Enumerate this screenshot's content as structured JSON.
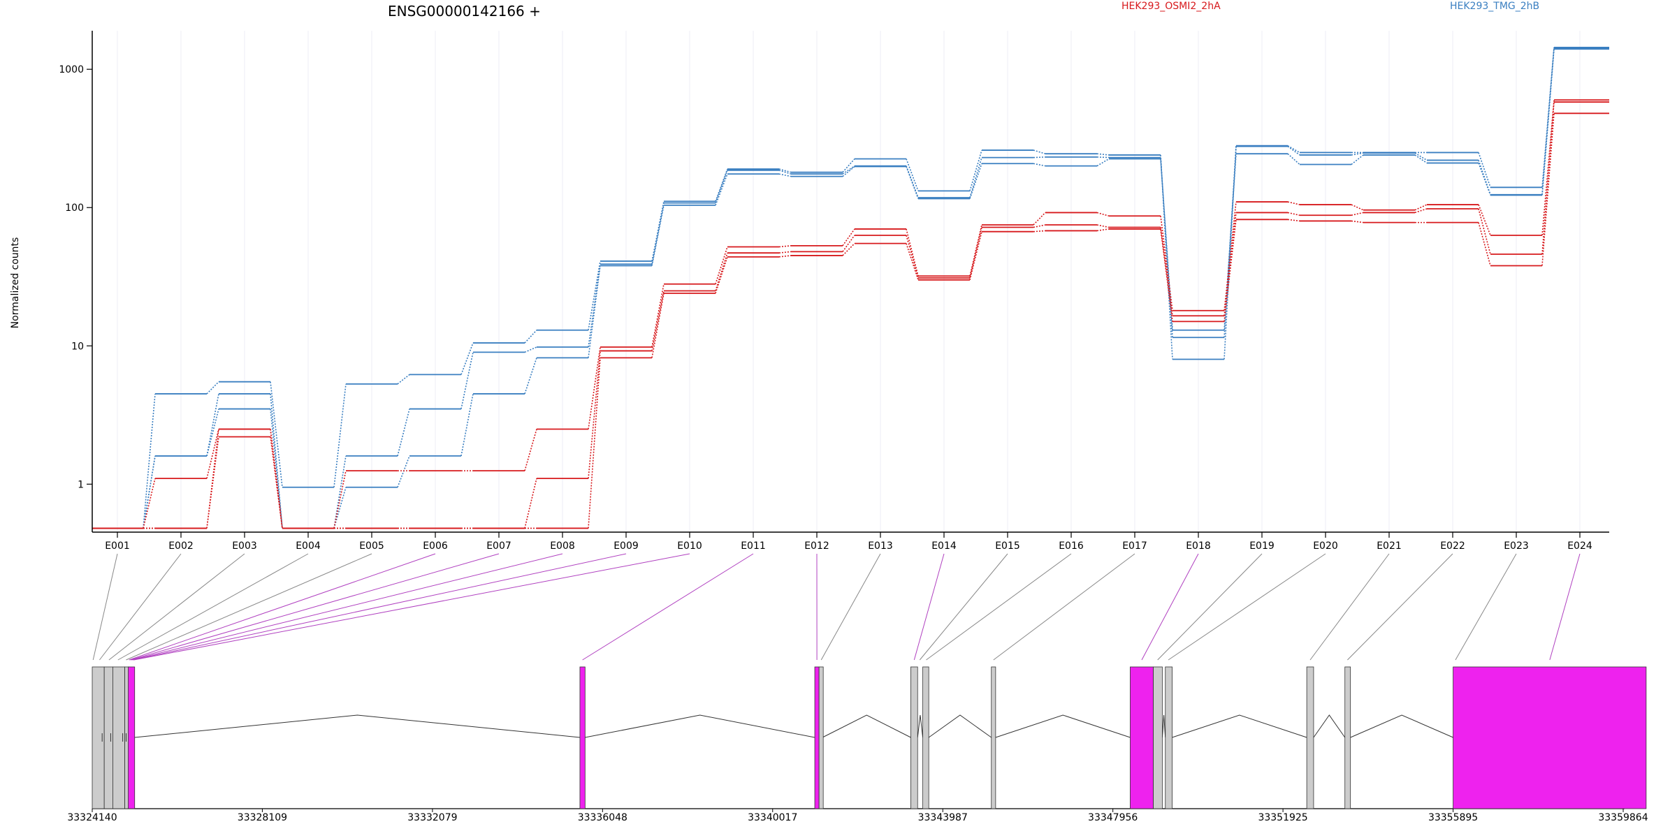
{
  "chart_data": {
    "type": "line",
    "title": "ENSG00000142166 +",
    "ylabel": "Normalized counts",
    "xlabel": "",
    "yscale": "log",
    "ylim": [
      0.45,
      1900
    ],
    "y_ticks": [
      1,
      10,
      100,
      1000
    ],
    "grid": "vertical",
    "legend_placement": "top",
    "exons": [
      "E001",
      "E002",
      "E003",
      "E004",
      "E005",
      "E006",
      "E007",
      "E008",
      "E009",
      "E010",
      "E011",
      "E012",
      "E013",
      "E014",
      "E015",
      "E016",
      "E017",
      "E018",
      "E019",
      "E020",
      "E021",
      "E022",
      "E023",
      "E024"
    ],
    "series": [
      {
        "name": "HEK293_TMG_2hB",
        "color": "#3a7fc1",
        "values": [
          0.48,
          4.5,
          5.5,
          0.95,
          5.3,
          6.2,
          10.5,
          13,
          41,
          111,
          190,
          180,
          225,
          132,
          260,
          245,
          240,
          8,
          280,
          250,
          250,
          250,
          140,
          1440
        ]
      },
      {
        "name": "HEK293_TMG_2hB",
        "color": "#3a7fc1",
        "values": [
          0.48,
          1.6,
          4.5,
          0.48,
          1.6,
          3.5,
          9,
          9.8,
          39,
          108,
          186,
          175,
          200,
          118,
          230,
          232,
          230,
          11.5,
          277,
          240,
          248,
          220,
          124,
          1420
        ]
      },
      {
        "name": "HEK293_TMG_2hB",
        "color": "#3a7fc1",
        "values": [
          0.48,
          1.6,
          3.5,
          0.48,
          0.95,
          1.6,
          4.5,
          8.2,
          38,
          104,
          175,
          168,
          198,
          116,
          208,
          200,
          225,
          13,
          245,
          205,
          240,
          210,
          123,
          1400
        ]
      },
      {
        "name": "HEK293_OSMI2_2hA",
        "color": "#d7191c",
        "values": [
          0.48,
          1.1,
          2.5,
          0.48,
          1.25,
          1.25,
          1.25,
          2.5,
          9.8,
          28,
          52,
          53,
          70,
          32,
          75,
          92,
          87,
          18,
          110,
          105,
          96,
          105,
          63,
          600
        ]
      },
      {
        "name": "HEK293_OSMI2_2hA",
        "color": "#d7191c",
        "values": [
          0.48,
          0.48,
          2.5,
          0.48,
          0.48,
          0.48,
          0.48,
          1.1,
          9.2,
          25,
          47,
          48,
          63,
          31,
          72,
          75,
          72,
          16.5,
          92,
          88,
          92,
          98,
          46,
          580
        ]
      },
      {
        "name": "HEK293_OSMI2_2hA",
        "color": "#d7191c",
        "values": [
          0.48,
          0.48,
          2.2,
          0.48,
          0.48,
          0.48,
          0.48,
          0.48,
          8.2,
          24,
          44,
          45,
          55,
          30,
          67,
          68,
          70,
          15,
          82,
          80,
          78,
          78,
          38,
          480
        ]
      }
    ],
    "legend": [
      {
        "label": "HEK293_OSMI2_2hA",
        "color": "#d7191c"
      },
      {
        "label": "HEK293_TMG_2hB",
        "color": "#3a7fc1"
      }
    ],
    "gene_model": {
      "coordinate_ticks": [
        "33324140",
        "33328109",
        "33332079",
        "33336048",
        "33340017",
        "33343987",
        "33347956",
        "33351925",
        "33355895",
        "33359864"
      ],
      "range": [
        33324140,
        33359864
      ],
      "exon_positions": [
        {
          "start": 33324140,
          "end": 33324420,
          "significant": false
        },
        {
          "start": 33324420,
          "end": 33324620,
          "significant": false
        },
        {
          "start": 33324620,
          "end": 33324900,
          "significant": false
        },
        {
          "start": 33324900,
          "end": 33324980,
          "significant": false
        },
        {
          "start": 33324980,
          "end": 33325130,
          "significant": true
        },
        {
          "start": 33335520,
          "end": 33335640,
          "significant": true
        },
        {
          "start": 33341000,
          "end": 33341100,
          "significant": true
        },
        {
          "start": 33341100,
          "end": 33341180,
          "significant": false
        },
        {
          "start": 33343240,
          "end": 33343400,
          "significant": false
        },
        {
          "start": 33343520,
          "end": 33343660,
          "significant": false
        },
        {
          "start": 33345120,
          "end": 33345220,
          "significant": false
        },
        {
          "start": 33348360,
          "end": 33348900,
          "significant": true
        },
        {
          "start": 33348900,
          "end": 33349110,
          "significant": false
        },
        {
          "start": 33349180,
          "end": 33349340,
          "significant": false
        },
        {
          "start": 33352480,
          "end": 33352640,
          "significant": false
        },
        {
          "start": 33353370,
          "end": 33353500,
          "significant": false
        },
        {
          "start": 33355895,
          "end": 33360400,
          "significant": true
        }
      ],
      "exon_map": [
        {
          "exon": "E001",
          "pos": 33324160,
          "significant": false
        },
        {
          "exon": "E002",
          "pos": 33324310,
          "significant": false
        },
        {
          "exon": "E003",
          "pos": 33324530,
          "significant": false
        },
        {
          "exon": "E004",
          "pos": 33324740,
          "significant": false
        },
        {
          "exon": "E005",
          "pos": 33324930,
          "significant": false
        },
        {
          "exon": "E006",
          "pos": 33325000,
          "significant": true
        },
        {
          "exon": "E007",
          "pos": 33325030,
          "significant": true
        },
        {
          "exon": "E008",
          "pos": 33325060,
          "significant": true
        },
        {
          "exon": "E009",
          "pos": 33325090,
          "significant": true
        },
        {
          "exon": "E010",
          "pos": 33325110,
          "significant": true
        },
        {
          "exon": "E011",
          "pos": 33335580,
          "significant": true
        },
        {
          "exon": "E012",
          "pos": 33341050,
          "significant": true
        },
        {
          "exon": "E013",
          "pos": 33341150,
          "significant": false
        },
        {
          "exon": "E014",
          "pos": 33343320,
          "significant": true
        },
        {
          "exon": "E015",
          "pos": 33343450,
          "significant": false
        },
        {
          "exon": "E016",
          "pos": 33343600,
          "significant": false
        },
        {
          "exon": "E017",
          "pos": 33345170,
          "significant": false
        },
        {
          "exon": "E018",
          "pos": 33348630,
          "significant": true
        },
        {
          "exon": "E019",
          "pos": 33349000,
          "significant": false
        },
        {
          "exon": "E020",
          "pos": 33349250,
          "significant": false
        },
        {
          "exon": "E021",
          "pos": 33352560,
          "significant": false
        },
        {
          "exon": "E022",
          "pos": 33353430,
          "significant": false
        },
        {
          "exon": "E023",
          "pos": 33355950,
          "significant": false
        },
        {
          "exon": "E024",
          "pos": 33358150,
          "significant": true
        }
      ]
    }
  },
  "colors": {
    "significant_exon": "#ee22ee",
    "exon": "#cccccc",
    "connector": "#888888",
    "significant_connector": "#b040c0"
  }
}
